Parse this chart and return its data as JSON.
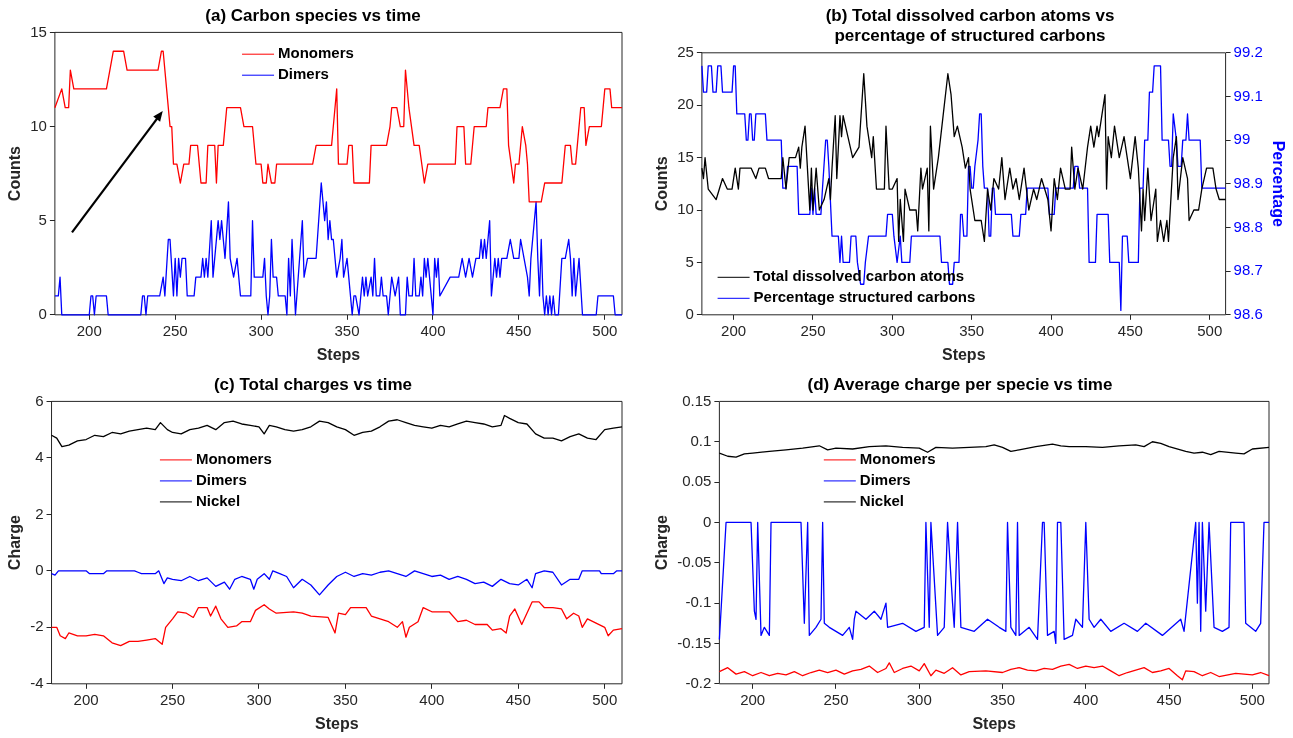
{
  "chart_data": [
    {
      "type": "line",
      "title": "(a) Carbon species vs time",
      "xlabel": "Steps",
      "ylabel": "Counts",
      "xlim": [
        180,
        510
      ],
      "xticks": [
        200,
        250,
        300,
        350,
        400,
        450,
        500
      ],
      "ylim": [
        0,
        15
      ],
      "yticks": [
        0,
        5,
        10,
        15
      ],
      "legend": "top",
      "series": [
        {
          "name": "Monomers",
          "color": "#ff0000",
          "x": [
            180,
            184,
            186,
            188,
            189,
            191,
            210,
            212,
            214,
            220,
            222,
            240,
            242,
            243,
            245,
            247,
            248,
            249,
            251,
            253,
            255,
            258,
            259,
            263,
            265,
            268,
            269,
            273,
            274,
            275,
            278,
            280,
            288,
            290,
            295,
            297,
            300,
            301,
            303,
            304,
            306,
            308,
            309,
            330,
            332,
            341,
            342,
            344,
            345,
            350,
            351,
            353,
            354,
            363,
            364,
            373,
            375,
            376,
            379,
            381,
            383,
            384,
            386,
            389,
            392,
            395,
            397,
            413,
            414,
            418,
            419,
            422,
            424,
            431,
            432,
            439,
            441,
            443,
            444,
            447,
            448,
            450,
            452,
            454,
            455,
            456,
            463,
            465,
            475,
            477,
            480,
            481,
            483,
            484,
            486,
            488,
            489,
            491,
            498,
            500,
            503,
            504,
            510
          ],
          "values": [
            11,
            12,
            11,
            11,
            13,
            12,
            12,
            13,
            14,
            14,
            13,
            13,
            14,
            14,
            12,
            10,
            10,
            8,
            8,
            7,
            8,
            8,
            9,
            9,
            7,
            7,
            9,
            9,
            7,
            9,
            9,
            11,
            11,
            10,
            10,
            8,
            8,
            7,
            7,
            8,
            7,
            7,
            8,
            8,
            9,
            9,
            10,
            12,
            8,
            8,
            9,
            9,
            7,
            7,
            9,
            9,
            10,
            11,
            11,
            10,
            10,
            13,
            11,
            9,
            9,
            7,
            8,
            8,
            10,
            10,
            8,
            8,
            10,
            10,
            11,
            11,
            12,
            12,
            9,
            7,
            8,
            8,
            10,
            9,
            8,
            6,
            6,
            7,
            7,
            9,
            9,
            8,
            8,
            9,
            11,
            11,
            9,
            10,
            10,
            12,
            12,
            11,
            11
          ]
        },
        {
          "name": "Dimers",
          "color": "#0000ff",
          "x": [
            180,
            182,
            183,
            184,
            200,
            201,
            202,
            203,
            204,
            210,
            211,
            230,
            231,
            232,
            233,
            234,
            241,
            243,
            244,
            246,
            247,
            249,
            250,
            251,
            252,
            253,
            254,
            256,
            257,
            261,
            262,
            265,
            266,
            267,
            268,
            269,
            271,
            272,
            273,
            275,
            276,
            277,
            279,
            281,
            282,
            284,
            286,
            288,
            294,
            295,
            296,
            301,
            302,
            303,
            304,
            305,
            306,
            307,
            309,
            310,
            314,
            315,
            316,
            317,
            318,
            319,
            320,
            324,
            325,
            327,
            332,
            335,
            337,
            338,
            339,
            340,
            341,
            342,
            344,
            346,
            347,
            348,
            350,
            351,
            353,
            354,
            355,
            357,
            359,
            360,
            361,
            362,
            364,
            365,
            366,
            367,
            369,
            370,
            371,
            373,
            374,
            376,
            378,
            380,
            381,
            384,
            385,
            386,
            388,
            389,
            390,
            392,
            393,
            394,
            395,
            396,
            397,
            398,
            400,
            401,
            402,
            403,
            404,
            410,
            415,
            417,
            419,
            421,
            423,
            425,
            427,
            428,
            429,
            430,
            431,
            432,
            433,
            434,
            436,
            437,
            438,
            439,
            440,
            443,
            445,
            447,
            450,
            451,
            453,
            455,
            456,
            457,
            460,
            461,
            462,
            463,
            464,
            465,
            466,
            467,
            468,
            469,
            470,
            471,
            473,
            475,
            477,
            479,
            480,
            481,
            482,
            483,
            485,
            487,
            495,
            496,
            505,
            506,
            510
          ],
          "values": [
            1,
            1,
            2,
            0,
            0,
            1,
            1,
            0,
            1,
            1,
            0,
            0,
            1,
            1,
            0,
            1,
            1,
            2,
            1,
            4,
            4,
            1,
            3,
            1,
            3,
            2,
            3,
            3,
            1,
            1,
            2,
            2,
            3,
            2,
            3,
            2,
            5,
            2,
            3,
            5,
            4,
            5,
            3,
            6,
            3,
            2,
            3,
            1,
            1,
            5,
            2,
            2,
            3,
            1,
            0,
            1,
            4,
            2,
            2,
            1,
            1,
            0,
            3,
            1,
            4,
            2,
            0,
            5,
            2,
            3,
            3,
            7,
            5,
            6,
            4,
            5,
            4,
            4,
            2,
            3,
            4,
            2,
            3,
            2,
            0,
            1,
            1,
            0,
            2,
            1,
            2,
            1,
            2,
            1,
            3,
            1,
            1,
            2,
            1,
            1,
            0,
            2,
            1,
            2,
            0,
            0,
            2,
            1,
            1,
            3,
            1,
            1,
            2,
            1,
            3,
            2,
            3,
            2,
            0,
            3,
            2,
            3,
            1,
            2,
            2,
            3,
            2,
            3,
            2,
            3,
            3,
            4,
            3,
            4,
            3,
            4,
            5,
            1,
            3,
            2,
            3,
            2,
            3,
            3,
            4,
            3,
            3,
            4,
            3,
            2,
            1,
            3,
            6,
            3,
            1,
            4,
            1,
            0,
            1,
            0,
            1,
            0,
            1,
            0,
            0,
            3,
            3,
            4,
            3,
            1,
            3,
            1,
            3,
            0,
            0,
            1,
            1,
            0,
            0
          ]
        }
      ]
    },
    {
      "type": "line",
      "title": "(b) Total dissolved carbon atoms vs percentage of structured carbons",
      "xlabel": "Steps",
      "ylabel": "Counts",
      "y2label": "Percentage",
      "xlim": [
        180,
        510
      ],
      "xticks": [
        200,
        250,
        300,
        350,
        400,
        450,
        500
      ],
      "ylim": [
        0,
        25
      ],
      "yticks": [
        0,
        5,
        10,
        15,
        20,
        25
      ],
      "y2lim": [
        98.6,
        99.2
      ],
      "y2ticks": [
        98.6,
        98.7,
        98.8,
        98.9,
        99,
        99.1,
        99.2
      ],
      "legend": "bottom left",
      "series": [
        {
          "name": "Total dissolved carbon atoms",
          "color": "#000000",
          "x": [
            180,
            181,
            182,
            184,
            189,
            193,
            196,
            199,
            201,
            203,
            204,
            211,
            214,
            216,
            220,
            222,
            230,
            231,
            233,
            235,
            239,
            241,
            242,
            243,
            245,
            248,
            249,
            250,
            252,
            254,
            257,
            260,
            261,
            262,
            264,
            265,
            267,
            268,
            269,
            272,
            275,
            279,
            282,
            284,
            287,
            288,
            290,
            295,
            296,
            298,
            300,
            303,
            304,
            305,
            307,
            308,
            311,
            315,
            316,
            318,
            319,
            322,
            323,
            324,
            326,
            329,
            332,
            335,
            337,
            339,
            341,
            344,
            346,
            348,
            349,
            352,
            356,
            358,
            360,
            362,
            364,
            367,
            369,
            371,
            374,
            376,
            378,
            380,
            383,
            386,
            389,
            391,
            394,
            396,
            398,
            400,
            402,
            404,
            406,
            409,
            412,
            413,
            415,
            417,
            420,
            423,
            425,
            427,
            429,
            430,
            432,
            434,
            435,
            436,
            438,
            440,
            443,
            446,
            449,
            450,
            453,
            455,
            457,
            458,
            459,
            461,
            463,
            466,
            467,
            469,
            471,
            473,
            474,
            477,
            479,
            480,
            483,
            486,
            487,
            490,
            493,
            495,
            498,
            502,
            504,
            506,
            510
          ],
          "values": [
            14,
            13,
            15,
            12,
            11,
            13,
            12,
            12,
            14,
            12,
            14,
            14,
            13,
            14,
            14,
            13,
            13,
            15,
            12,
            15,
            15,
            16,
            14,
            16,
            18,
            10,
            14,
            10,
            14,
            10,
            11,
            13,
            11,
            14,
            19,
            13,
            19,
            17,
            19,
            17,
            15,
            16,
            23,
            18,
            15,
            17,
            12,
            12,
            18,
            12,
            12,
            13,
            7,
            11,
            7,
            12,
            10,
            10,
            8,
            14,
            12,
            14,
            8,
            18,
            12,
            15,
            19,
            23,
            21,
            17,
            18,
            16,
            14,
            15,
            12,
            9,
            9,
            7,
            12,
            10,
            13,
            12,
            15,
            11,
            14,
            12,
            13,
            11,
            14,
            10,
            12,
            11,
            13,
            12,
            11,
            8,
            13,
            11,
            14,
            12,
            12,
            16,
            12,
            14,
            12,
            16,
            18,
            16,
            18,
            17,
            19,
            21,
            12,
            17,
            15,
            18,
            15,
            17,
            14,
            13,
            17,
            14,
            8,
            12,
            9,
            14,
            9,
            12,
            7,
            9,
            7,
            9,
            7,
            15,
            17,
            11,
            15,
            13,
            9,
            10,
            10,
            12,
            14,
            14,
            12,
            11,
            11
          ]
        },
        {
          "name": "Percentage structured carbons",
          "color": "#0000ff",
          "axis": "y2",
          "x": [
            180,
            181,
            183,
            184,
            186,
            187,
            189,
            190,
            192,
            193,
            199,
            200,
            201,
            202,
            207,
            208,
            209,
            210,
            211,
            212,
            213,
            214,
            220,
            221,
            230,
            231,
            233,
            234,
            240,
            241,
            248,
            249,
            250,
            251,
            252,
            255,
            256,
            258,
            259,
            260,
            262,
            266,
            267,
            268,
            269,
            273,
            274,
            277,
            278,
            280,
            282,
            283,
            285,
            296,
            297,
            300,
            301,
            303,
            305,
            306,
            311,
            312,
            330,
            331,
            335,
            336,
            338,
            339,
            342,
            343,
            344,
            345,
            347,
            348,
            349,
            350,
            351,
            352,
            354,
            355,
            356,
            357,
            358,
            360,
            361,
            362,
            363,
            364,
            365,
            375,
            376,
            380,
            381,
            384,
            385,
            398,
            399,
            402,
            403,
            414,
            415,
            417,
            418,
            423,
            424,
            428,
            429,
            436,
            437,
            443,
            444,
            445,
            448,
            449,
            455,
            456,
            458,
            459,
            461,
            462,
            464,
            465,
            469,
            470,
            474,
            475,
            476,
            477,
            479,
            480,
            482,
            483,
            485,
            486,
            487,
            494,
            495,
            510
          ],
          "values": [
            99.17,
            99.11,
            99.11,
            99.17,
            99.17,
            99.11,
            99.11,
            99.17,
            99.17,
            99.11,
            99.11,
            99.17,
            99.17,
            99.06,
            99.06,
            99.0,
            99.0,
            99.06,
            99.06,
            99.0,
            99.0,
            99.06,
            99.06,
            99.0,
            99.0,
            98.89,
            98.89,
            98.94,
            98.94,
            98.83,
            98.83,
            98.89,
            98.83,
            98.89,
            98.83,
            98.83,
            98.89,
            99.0,
            99.0,
            98.94,
            98.78,
            98.78,
            98.72,
            98.78,
            98.72,
            98.72,
            98.78,
            98.78,
            98.72,
            98.67,
            98.67,
            98.72,
            98.78,
            98.78,
            98.83,
            98.83,
            98.78,
            98.72,
            98.78,
            98.72,
            98.72,
            98.78,
            98.78,
            98.72,
            98.72,
            98.67,
            98.67,
            98.72,
            98.72,
            98.83,
            98.83,
            98.78,
            98.78,
            98.94,
            98.94,
            98.89,
            98.89,
            98.94,
            99.0,
            99.06,
            99.06,
            98.94,
            98.89,
            98.89,
            98.78,
            98.78,
            98.89,
            98.89,
            98.83,
            98.83,
            98.78,
            98.78,
            98.83,
            98.83,
            98.89,
            98.89,
            98.83,
            98.83,
            98.89,
            98.89,
            98.94,
            98.94,
            98.89,
            98.89,
            98.72,
            98.72,
            98.83,
            98.83,
            98.72,
            98.72,
            98.61,
            98.78,
            98.78,
            98.72,
            98.72,
            98.89,
            98.89,
            99.0,
            99.0,
            99.11,
            99.11,
            99.17,
            99.17,
            99.0,
            99.0,
            98.94,
            98.94,
            99.06,
            99.0,
            98.94,
            98.94,
            99.0,
            99.0,
            99.06,
            99.0,
            99.0,
            98.89,
            98.89
          ]
        }
      ]
    },
    {
      "type": "line",
      "title": "(c) Total charges vs time",
      "xlabel": "Steps",
      "ylabel": "Charge",
      "xlim": [
        180,
        510
      ],
      "xticks": [
        200,
        250,
        300,
        350,
        400,
        450,
        500
      ],
      "ylim": [
        -4,
        6
      ],
      "yticks": [
        -4,
        -2,
        0,
        2,
        4,
        6
      ],
      "legend": "top left",
      "series": [
        {
          "name": "Monomers",
          "color": "#ff0000",
          "x": [
            180,
            183,
            185,
            188,
            190,
            195,
            200,
            205,
            210,
            215,
            220,
            225,
            230,
            235,
            240,
            244,
            246,
            250,
            253,
            258,
            262,
            265,
            270,
            272,
            275,
            278,
            282,
            287,
            290,
            295,
            298,
            303,
            306,
            310,
            320,
            325,
            330,
            340,
            344,
            346,
            350,
            353,
            362,
            365,
            370,
            375,
            380,
            383,
            385,
            387,
            392,
            395,
            400,
            410,
            415,
            420,
            425,
            432,
            435,
            440,
            443,
            445,
            448,
            452,
            455,
            458,
            462,
            465,
            470,
            475,
            478,
            482,
            485,
            487,
            490,
            495,
            500,
            502,
            505,
            510
          ],
          "values": [
            -2.0,
            -2.0,
            -2.3,
            -2.4,
            -2.2,
            -2.3,
            -2.3,
            -2.25,
            -2.3,
            -2.55,
            -2.65,
            -2.5,
            -2.5,
            -2.45,
            -2.4,
            -2.6,
            -2.0,
            -1.7,
            -1.45,
            -1.5,
            -1.65,
            -1.3,
            -1.3,
            -1.6,
            -1.25,
            -1.7,
            -2.0,
            -1.95,
            -1.8,
            -1.8,
            -1.4,
            -1.2,
            -1.35,
            -1.5,
            -1.45,
            -1.5,
            -1.6,
            -1.65,
            -2.2,
            -1.5,
            -1.55,
            -1.3,
            -1.3,
            -1.6,
            -1.7,
            -1.8,
            -2.0,
            -1.8,
            -2.35,
            -2.0,
            -1.8,
            -1.3,
            -1.45,
            -1.45,
            -1.8,
            -1.75,
            -1.9,
            -1.9,
            -2.1,
            -2.05,
            -2.2,
            -1.6,
            -1.35,
            -1.9,
            -1.5,
            -1.1,
            -1.1,
            -1.3,
            -1.3,
            -1.35,
            -1.7,
            -1.5,
            -1.6,
            -2.0,
            -1.7,
            -1.85,
            -2.0,
            -2.3,
            -2.1,
            -2.05
          ]
        },
        {
          "name": "Dimers",
          "color": "#0000ff",
          "x": [
            180,
            182,
            184,
            200,
            202,
            210,
            212,
            228,
            230,
            232,
            240,
            242,
            245,
            247,
            250,
            255,
            260,
            265,
            270,
            275,
            280,
            283,
            286,
            290,
            295,
            297,
            299,
            303,
            306,
            308,
            312,
            316,
            320,
            325,
            330,
            335,
            340,
            345,
            350,
            355,
            360,
            365,
            370,
            375,
            380,
            385,
            390,
            395,
            400,
            405,
            410,
            415,
            420,
            425,
            430,
            435,
            440,
            445,
            450,
            455,
            458,
            460,
            465,
            470,
            475,
            480,
            485,
            487,
            497,
            498,
            505,
            507,
            510
          ],
          "values": [
            -0.1,
            -0.15,
            0,
            0,
            -0.1,
            -0.1,
            0,
            0,
            -0.05,
            -0.1,
            -0.1,
            0,
            -0.45,
            -0.25,
            -0.3,
            -0.35,
            -0.2,
            -0.35,
            -0.25,
            -0.55,
            -0.4,
            -0.65,
            -0.3,
            -0.2,
            -0.3,
            -0.65,
            -0.3,
            -0.1,
            -0.3,
            0,
            -0.1,
            -0.2,
            -0.6,
            -0.3,
            -0.5,
            -0.85,
            -0.5,
            -0.2,
            -0.05,
            -0.2,
            -0.1,
            -0.15,
            -0.05,
            0,
            -0.1,
            -0.2,
            0,
            -0.1,
            -0.2,
            -0.15,
            -0.3,
            -0.2,
            -0.3,
            -0.45,
            -0.4,
            -0.55,
            -0.3,
            -0.45,
            -0.5,
            -0.3,
            -0.6,
            -0.1,
            0,
            -0.05,
            -0.5,
            -0.3,
            -0.3,
            0,
            0,
            -0.1,
            -0.1,
            0,
            0
          ]
        },
        {
          "name": "Nickel",
          "color": "#000000",
          "x": [
            180,
            183,
            186,
            190,
            195,
            200,
            205,
            210,
            215,
            220,
            225,
            230,
            235,
            240,
            243,
            247,
            250,
            255,
            260,
            265,
            270,
            275,
            280,
            285,
            290,
            295,
            300,
            303,
            306,
            310,
            315,
            320,
            325,
            330,
            335,
            340,
            345,
            350,
            355,
            360,
            365,
            370,
            375,
            380,
            385,
            390,
            395,
            400,
            405,
            410,
            415,
            420,
            425,
            430,
            435,
            440,
            442,
            445,
            450,
            455,
            460,
            465,
            470,
            475,
            480,
            485,
            490,
            495,
            500,
            505,
            510
          ],
          "values": [
            4.8,
            4.7,
            4.4,
            4.45,
            4.6,
            4.65,
            4.8,
            4.75,
            4.9,
            4.85,
            4.95,
            5.0,
            5.05,
            5.0,
            5.25,
            5.0,
            4.9,
            4.85,
            5.0,
            5.05,
            5.15,
            5.0,
            5.25,
            5.3,
            5.2,
            5.15,
            5.1,
            4.85,
            5.15,
            5.1,
            5.0,
            4.95,
            5.0,
            5.1,
            5.3,
            5.25,
            5.1,
            5.0,
            4.8,
            4.9,
            4.95,
            5.1,
            5.3,
            5.35,
            5.25,
            5.15,
            5.1,
            5.05,
            5.15,
            5.1,
            5.2,
            5.3,
            5.25,
            5.2,
            5.1,
            5.15,
            5.5,
            5.4,
            5.25,
            5.2,
            4.85,
            4.7,
            4.7,
            4.6,
            4.75,
            4.85,
            4.7,
            4.65,
            5.0,
            5.05,
            5.1
          ]
        }
      ]
    },
    {
      "type": "line",
      "title": "(d) Average charge per specie vs time",
      "xlabel": "Steps",
      "ylabel": "Charge",
      "xlim": [
        180,
        510
      ],
      "xticks": [
        200,
        250,
        300,
        350,
        400,
        450,
        500
      ],
      "ylim": [
        -0.2,
        0.15
      ],
      "yticks": [
        -0.2,
        -0.15,
        -0.1,
        -0.05,
        0,
        0.05,
        0.1,
        0.15
      ],
      "legend": "top left",
      "series": [
        {
          "name": "Monomers",
          "color": "#ff0000",
          "x": [
            180,
            185,
            190,
            195,
            200,
            205,
            210,
            215,
            220,
            225,
            230,
            235,
            240,
            245,
            250,
            255,
            260,
            265,
            270,
            275,
            280,
            282,
            285,
            290,
            295,
            300,
            303,
            307,
            310,
            315,
            320,
            325,
            330,
            340,
            350,
            355,
            360,
            365,
            370,
            375,
            380,
            385,
            390,
            395,
            400,
            405,
            410,
            415,
            420,
            425,
            430,
            435,
            440,
            445,
            450,
            455,
            458,
            460,
            465,
            470,
            475,
            480,
            490,
            500,
            505,
            510
          ],
          "values": [
            -0.185,
            -0.18,
            -0.188,
            -0.185,
            -0.19,
            -0.186,
            -0.19,
            -0.187,
            -0.189,
            -0.185,
            -0.19,
            -0.186,
            -0.183,
            -0.186,
            -0.183,
            -0.188,
            -0.184,
            -0.182,
            -0.178,
            -0.186,
            -0.181,
            -0.174,
            -0.186,
            -0.181,
            -0.178,
            -0.184,
            -0.175,
            -0.19,
            -0.183,
            -0.187,
            -0.18,
            -0.189,
            -0.185,
            -0.184,
            -0.186,
            -0.182,
            -0.18,
            -0.183,
            -0.184,
            -0.181,
            -0.182,
            -0.178,
            -0.176,
            -0.181,
            -0.178,
            -0.18,
            -0.178,
            -0.184,
            -0.19,
            -0.186,
            -0.183,
            -0.18,
            -0.186,
            -0.184,
            -0.181,
            -0.19,
            -0.195,
            -0.184,
            -0.185,
            -0.19,
            -0.186,
            -0.191,
            -0.187,
            -0.189,
            -0.186,
            -0.19
          ]
        },
        {
          "name": "Dimers",
          "color": "#0000ff",
          "x": [
            180,
            184,
            199,
            201,
            202,
            203,
            205,
            207,
            210,
            211,
            229,
            231,
            233,
            234,
            238,
            241,
            242,
            243,
            246,
            254,
            258,
            260,
            261,
            262,
            268,
            273,
            277,
            280,
            281,
            290,
            298,
            303,
            304,
            306,
            307,
            311,
            315,
            317,
            320,
            321,
            323,
            325,
            333,
            341,
            348,
            352,
            353,
            355,
            358,
            359,
            360,
            366,
            371,
            374,
            375,
            377,
            381,
            382,
            383,
            385,
            387,
            392,
            394,
            398,
            400,
            402,
            405,
            409,
            415,
            423,
            431,
            436,
            446,
            457,
            459,
            466,
            467,
            468,
            469,
            470,
            472,
            474,
            477,
            482,
            486,
            487,
            495,
            496,
            502,
            505,
            507,
            510
          ],
          "values": [
            -0.145,
            0,
            0,
            -0.11,
            -0.12,
            0,
            -0.14,
            -0.13,
            -0.14,
            0,
            0,
            -0.125,
            0,
            -0.14,
            -0.13,
            -0.12,
            0,
            -0.125,
            -0.13,
            -0.14,
            -0.13,
            -0.145,
            -0.12,
            -0.11,
            -0.12,
            -0.11,
            -0.12,
            -0.1,
            -0.13,
            -0.125,
            -0.135,
            -0.13,
            0,
            -0.13,
            0,
            -0.14,
            -0.13,
            0,
            -0.1,
            -0.13,
            0,
            -0.13,
            -0.135,
            -0.12,
            -0.13,
            -0.135,
            0,
            -0.13,
            -0.14,
            0,
            -0.14,
            -0.13,
            -0.145,
            0,
            0,
            -0.14,
            -0.135,
            -0.15,
            0,
            0,
            -0.145,
            -0.14,
            -0.12,
            -0.13,
            0,
            -0.12,
            -0.13,
            -0.12,
            -0.135,
            -0.125,
            -0.135,
            -0.125,
            -0.14,
            -0.12,
            -0.135,
            0,
            -0.1,
            0,
            -0.135,
            0,
            -0.11,
            0,
            -0.13,
            -0.135,
            -0.13,
            0,
            0,
            -0.125,
            -0.135,
            -0.125,
            0,
            0
          ]
        },
        {
          "name": "Nickel",
          "color": "#000000",
          "x": [
            180,
            185,
            190,
            195,
            200,
            210,
            220,
            230,
            240,
            245,
            250,
            260,
            270,
            280,
            290,
            300,
            305,
            310,
            320,
            330,
            340,
            345,
            350,
            355,
            360,
            370,
            380,
            385,
            390,
            400,
            410,
            420,
            430,
            435,
            440,
            445,
            450,
            460,
            465,
            470,
            475,
            480,
            490,
            495,
            500,
            510
          ],
          "values": [
            0.086,
            0.082,
            0.081,
            0.085,
            0.086,
            0.088,
            0.09,
            0.092,
            0.095,
            0.09,
            0.092,
            0.091,
            0.094,
            0.095,
            0.093,
            0.092,
            0.087,
            0.093,
            0.092,
            0.093,
            0.094,
            0.096,
            0.093,
            0.088,
            0.09,
            0.094,
            0.097,
            0.095,
            0.094,
            0.094,
            0.093,
            0.095,
            0.096,
            0.094,
            0.1,
            0.098,
            0.094,
            0.088,
            0.086,
            0.087,
            0.084,
            0.088,
            0.086,
            0.085,
            0.091,
            0.093
          ]
        }
      ]
    }
  ]
}
